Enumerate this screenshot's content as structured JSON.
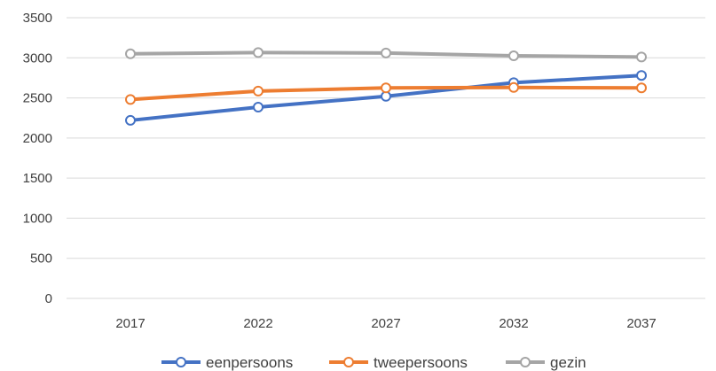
{
  "chart_data": {
    "type": "line",
    "categories": [
      "2017",
      "2022",
      "2027",
      "2032",
      "2037"
    ],
    "series": [
      {
        "name": "eenpersoons",
        "color": "#4472C4",
        "values": [
          2220,
          2385,
          2520,
          2690,
          2780
        ]
      },
      {
        "name": "tweepersoons",
        "color": "#ED7D31",
        "values": [
          2480,
          2585,
          2625,
          2630,
          2625
        ]
      },
      {
        "name": "gezin",
        "color": "#A5A5A5",
        "values": [
          3050,
          3065,
          3060,
          3025,
          3010
        ]
      }
    ],
    "y_ticks": [
      "0",
      "500",
      "1000",
      "1500",
      "2000",
      "2500",
      "3000",
      "3500"
    ],
    "ylim": [
      0,
      3500
    ],
    "grid": true,
    "legend_position": "bottom"
  }
}
